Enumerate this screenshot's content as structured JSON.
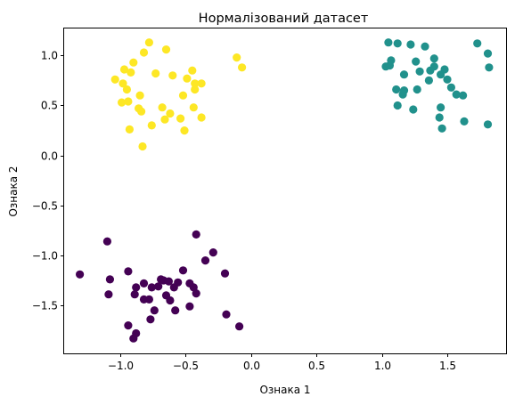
{
  "chart_data": {
    "type": "scatter",
    "title": "Нормалізований датасет",
    "xlabel": "Ознака 1",
    "ylabel": "Ознака 2",
    "xlim": [
      -1.43,
      1.95
    ],
    "ylim": [
      -1.98,
      1.27
    ],
    "xticks": [
      "−1.0",
      "−0.5",
      "0.0",
      "0.5",
      "1.0",
      "1.5"
    ],
    "xtick_values": [
      -1.0,
      -0.5,
      0.0,
      0.5,
      1.0,
      1.5
    ],
    "yticks": [
      "1.0",
      "0.5",
      "0.0",
      "−0.5",
      "−1.0",
      "−1.5"
    ],
    "ytick_values": [
      1.0,
      0.5,
      0.0,
      -0.5,
      -1.0,
      -1.5
    ],
    "grid": false,
    "series": [
      {
        "color": "#fde725",
        "points": [
          [
            -0.78,
            1.13
          ],
          [
            -0.65,
            1.06
          ],
          [
            -0.82,
            1.03
          ],
          [
            -0.9,
            0.93
          ],
          [
            -0.97,
            0.86
          ],
          [
            -0.92,
            0.83
          ],
          [
            -0.73,
            0.82
          ],
          [
            -0.6,
            0.8
          ],
          [
            -1.04,
            0.76
          ],
          [
            -0.98,
            0.72
          ],
          [
            -0.45,
            0.85
          ],
          [
            -0.49,
            0.77
          ],
          [
            -0.43,
            0.72
          ],
          [
            -0.38,
            0.72
          ],
          [
            -0.43,
            0.66
          ],
          [
            -0.52,
            0.6
          ],
          [
            -0.95,
            0.66
          ],
          [
            -0.85,
            0.6
          ],
          [
            -0.99,
            0.53
          ],
          [
            -0.94,
            0.54
          ],
          [
            -0.86,
            0.47
          ],
          [
            -0.84,
            0.44
          ],
          [
            -0.68,
            0.48
          ],
          [
            -0.62,
            0.42
          ],
          [
            -0.44,
            0.48
          ],
          [
            -0.38,
            0.38
          ],
          [
            -0.54,
            0.37
          ],
          [
            -0.76,
            0.3
          ],
          [
            -0.66,
            0.36
          ],
          [
            -0.93,
            0.26
          ],
          [
            -0.51,
            0.25
          ],
          [
            -0.83,
            0.09
          ],
          [
            -0.11,
            0.98
          ],
          [
            -0.07,
            0.88
          ]
        ]
      },
      {
        "color": "#21918c",
        "points": [
          [
            1.05,
            1.13
          ],
          [
            1.12,
            1.12
          ],
          [
            1.22,
            1.11
          ],
          [
            1.33,
            1.09
          ],
          [
            1.73,
            1.12
          ],
          [
            1.81,
            1.02
          ],
          [
            1.03,
            0.89
          ],
          [
            1.06,
            0.9
          ],
          [
            1.07,
            0.95
          ],
          [
            1.26,
            0.94
          ],
          [
            1.4,
            0.97
          ],
          [
            1.48,
            0.86
          ],
          [
            1.4,
            0.89
          ],
          [
            1.37,
            0.85
          ],
          [
            1.29,
            0.84
          ],
          [
            1.45,
            0.81
          ],
          [
            1.17,
            0.81
          ],
          [
            1.5,
            0.76
          ],
          [
            1.53,
            0.68
          ],
          [
            1.36,
            0.75
          ],
          [
            1.11,
            0.66
          ],
          [
            1.17,
            0.65
          ],
          [
            1.27,
            0.66
          ],
          [
            1.16,
            0.61
          ],
          [
            1.57,
            0.61
          ],
          [
            1.62,
            0.6
          ],
          [
            1.82,
            0.88
          ],
          [
            1.12,
            0.5
          ],
          [
            1.24,
            0.46
          ],
          [
            1.45,
            0.48
          ],
          [
            1.44,
            0.38
          ],
          [
            1.63,
            0.34
          ],
          [
            1.46,
            0.27
          ],
          [
            1.81,
            0.31
          ]
        ]
      },
      {
        "color": "#440154",
        "points": [
          [
            -1.1,
            -0.86
          ],
          [
            -0.42,
            -0.79
          ],
          [
            -0.29,
            -0.97
          ],
          [
            -0.35,
            -1.05
          ],
          [
            -1.31,
            -1.19
          ],
          [
            -1.08,
            -1.24
          ],
          [
            -0.94,
            -1.16
          ],
          [
            -0.52,
            -1.15
          ],
          [
            -0.2,
            -1.18
          ],
          [
            -0.67,
            -1.25
          ],
          [
            -0.63,
            -1.26
          ],
          [
            -0.69,
            -1.24
          ],
          [
            -0.71,
            -1.31
          ],
          [
            -0.56,
            -1.27
          ],
          [
            -0.47,
            -1.28
          ],
          [
            -0.44,
            -1.32
          ],
          [
            -0.82,
            -1.28
          ],
          [
            -0.76,
            -1.32
          ],
          [
            -0.59,
            -1.32
          ],
          [
            -0.88,
            -1.32
          ],
          [
            -1.09,
            -1.39
          ],
          [
            -0.89,
            -1.39
          ],
          [
            -0.78,
            -1.44
          ],
          [
            -0.82,
            -1.44
          ],
          [
            -0.42,
            -1.38
          ],
          [
            -0.65,
            -1.4
          ],
          [
            -0.62,
            -1.45
          ],
          [
            -0.47,
            -1.51
          ],
          [
            -0.58,
            -1.55
          ],
          [
            -0.74,
            -1.55
          ],
          [
            -0.19,
            -1.59
          ],
          [
            -0.77,
            -1.64
          ],
          [
            -0.94,
            -1.7
          ],
          [
            -0.09,
            -1.71
          ],
          [
            -0.88,
            -1.78
          ],
          [
            -0.9,
            -1.83
          ]
        ]
      }
    ]
  }
}
